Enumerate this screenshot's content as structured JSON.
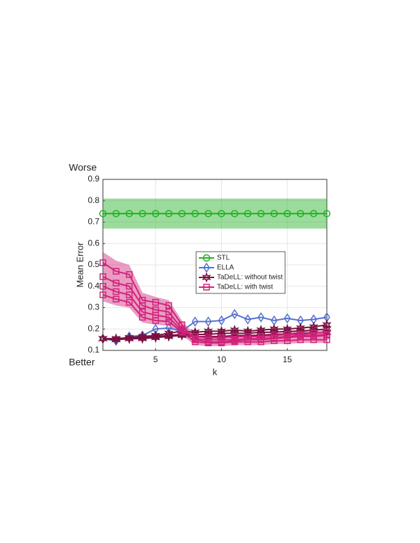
{
  "chart_data": {
    "type": "line",
    "annotations": {
      "top": "Worse",
      "bottom": "Better"
    },
    "xlabel": "k",
    "ylabel": "Mean Error",
    "x": [
      1,
      2,
      3,
      4,
      5,
      6,
      7,
      8,
      9,
      10,
      11,
      12,
      13,
      14,
      15,
      16,
      17,
      18
    ],
    "xlim": [
      1,
      18
    ],
    "xticks": [
      5,
      10,
      15
    ],
    "ylim": [
      0.1,
      0.9
    ],
    "yticks": [
      0.1,
      0.2,
      0.3,
      0.4,
      0.5,
      0.6,
      0.7,
      0.8,
      0.9
    ],
    "grid": true,
    "legend": "center-right",
    "series": [
      {
        "name": "STL",
        "color": "#22b022",
        "marker": "circle",
        "values": [
          [
            0.74,
            0.74,
            0.74,
            0.74,
            0.74,
            0.74,
            0.74,
            0.74,
            0.74,
            0.74,
            0.74,
            0.74,
            0.74,
            0.74,
            0.74,
            0.74,
            0.74,
            0.74
          ]
        ],
        "band_low": [
          0.67,
          0.67,
          0.67,
          0.67,
          0.67,
          0.67,
          0.67,
          0.67,
          0.67,
          0.67,
          0.67,
          0.67,
          0.67,
          0.67,
          0.67,
          0.67,
          0.67,
          0.67
        ],
        "band_high": [
          0.81,
          0.81,
          0.81,
          0.81,
          0.81,
          0.81,
          0.81,
          0.81,
          0.81,
          0.81,
          0.81,
          0.81,
          0.81,
          0.81,
          0.81,
          0.81,
          0.81,
          0.81
        ]
      },
      {
        "name": "ELLA",
        "color": "#5470d0",
        "marker": "diamond",
        "values": [
          [
            0.155,
            0.145,
            0.165,
            0.17,
            0.2,
            0.205,
            0.19,
            0.235,
            0.235,
            0.24,
            0.27,
            0.245,
            0.255,
            0.24,
            0.25,
            0.24,
            0.245,
            0.255
          ]
        ]
      },
      {
        "name": "TaDeLL: without twist",
        "color": "#7a1040",
        "marker": "star",
        "values": [
          [
            0.155,
            0.155,
            0.16,
            0.165,
            0.17,
            0.18,
            0.19,
            0.185,
            0.19,
            0.19,
            0.195,
            0.19,
            0.195,
            0.2,
            0.2,
            0.205,
            0.21,
            0.22
          ],
          [
            0.155,
            0.155,
            0.155,
            0.16,
            0.165,
            0.17,
            0.175,
            0.175,
            0.175,
            0.18,
            0.18,
            0.18,
            0.185,
            0.185,
            0.19,
            0.19,
            0.195,
            0.2
          ],
          [
            0.155,
            0.15,
            0.155,
            0.155,
            0.16,
            0.165,
            0.17,
            0.165,
            0.165,
            0.165,
            0.17,
            0.17,
            0.17,
            0.175,
            0.175,
            0.18,
            0.18,
            0.185
          ]
        ]
      },
      {
        "name": "TaDeLL: with twist",
        "color": "#d0237a",
        "marker": "square",
        "values": [
          [
            0.51,
            0.47,
            0.455,
            0.335,
            0.325,
            0.31,
            0.22,
            0.15,
            0.14,
            0.14,
            0.145,
            0.15,
            0.15,
            0.155,
            0.16,
            0.165,
            0.165,
            0.17
          ],
          [
            0.445,
            0.415,
            0.4,
            0.31,
            0.29,
            0.28,
            0.2,
            0.155,
            0.15,
            0.15,
            0.15,
            0.155,
            0.155,
            0.16,
            0.165,
            0.17,
            0.17,
            0.175
          ],
          [
            0.4,
            0.375,
            0.36,
            0.28,
            0.265,
            0.255,
            0.19,
            0.165,
            0.16,
            0.16,
            0.165,
            0.165,
            0.165,
            0.17,
            0.175,
            0.175,
            0.18,
            0.185
          ],
          [
            0.36,
            0.34,
            0.325,
            0.255,
            0.24,
            0.235,
            0.185,
            0.14,
            0.135,
            0.135,
            0.14,
            0.14,
            0.14,
            0.145,
            0.145,
            0.15,
            0.15,
            0.15
          ]
        ],
        "band_low": [
          0.33,
          0.31,
          0.3,
          0.23,
          0.22,
          0.215,
          0.17,
          0.125,
          0.12,
          0.12,
          0.125,
          0.125,
          0.125,
          0.13,
          0.13,
          0.135,
          0.135,
          0.135
        ],
        "band_high": [
          0.56,
          0.52,
          0.5,
          0.37,
          0.35,
          0.335,
          0.24,
          0.17,
          0.165,
          0.165,
          0.17,
          0.175,
          0.175,
          0.18,
          0.185,
          0.19,
          0.19,
          0.195
        ]
      }
    ]
  }
}
